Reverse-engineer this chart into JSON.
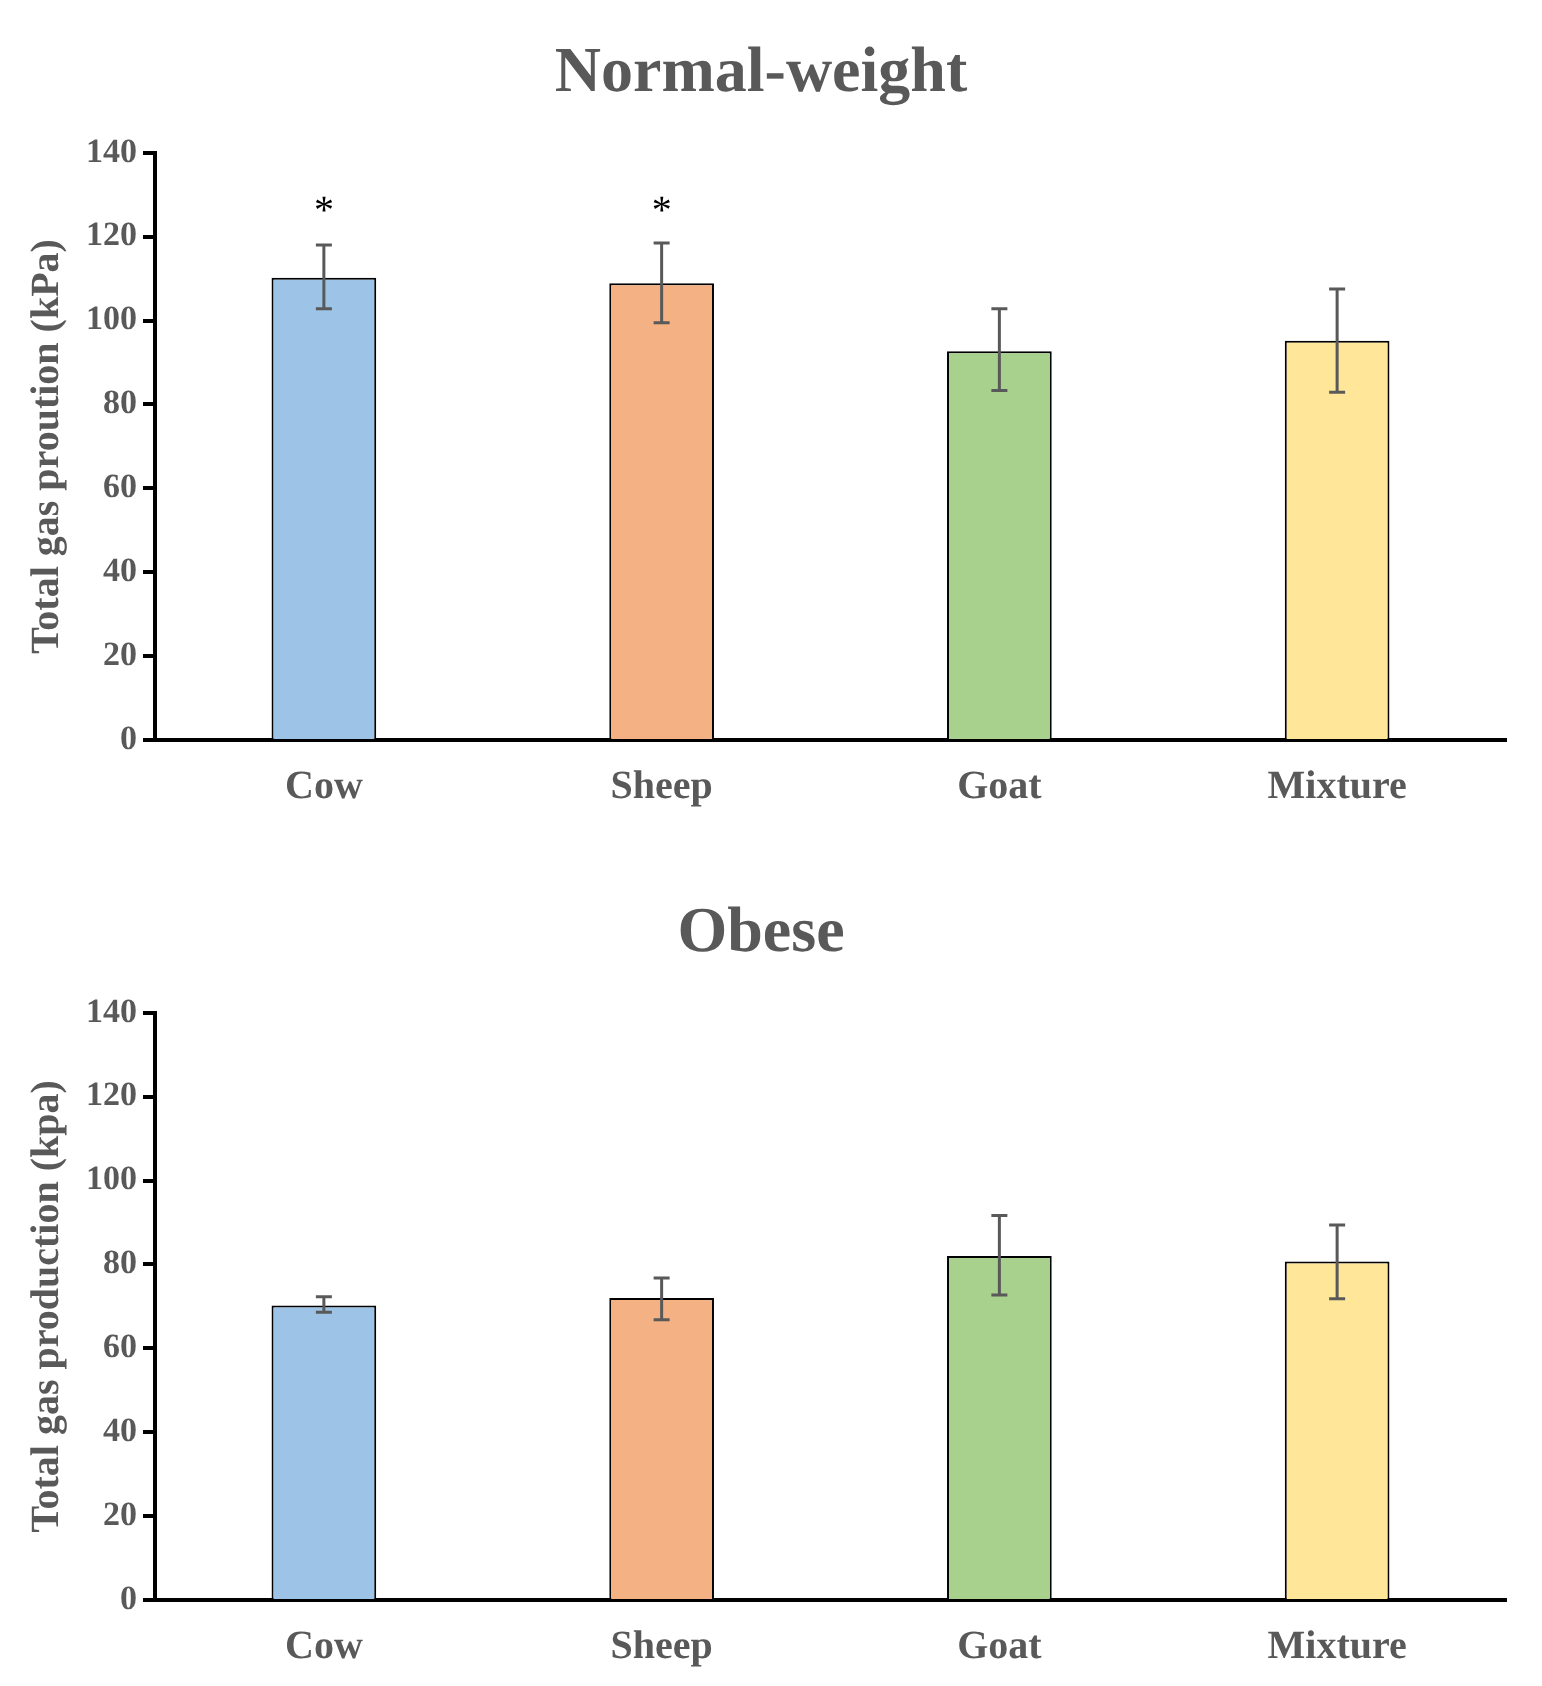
{
  "chart_data": [
    {
      "type": "bar",
      "title": "Normal-weight",
      "ylabel": "Total gas proution (kPa)",
      "categories": [
        "Cow",
        "Sheep",
        "Goat",
        "Mixture"
      ],
      "values": [
        110.2,
        108.9,
        92.7,
        95.2
      ],
      "colors": [
        "#9dc3e6",
        "#f4b183",
        "#a9d18e",
        "#ffe699"
      ],
      "errors": [
        [
          102.8,
          118
        ],
        [
          99.5,
          118.5
        ],
        [
          83.3,
          102.8
        ],
        [
          82.9,
          107.5
        ]
      ],
      "ylim": [
        0,
        140
      ],
      "yticks": [
        0,
        20,
        40,
        60,
        80,
        100,
        120,
        140
      ],
      "grid": false,
      "annotations": [
        "*",
        "*"
      ]
    },
    {
      "type": "bar",
      "title": "Obese",
      "ylabel": "Total gas production (kpa)",
      "categories": [
        "Cow",
        "Sheep",
        "Goat",
        "Mixture"
      ],
      "values": [
        70.2,
        72,
        82,
        80.7
      ],
      "colors": [
        "#9dc3e6",
        "#f4b183",
        "#a9d18e",
        "#ffe699"
      ],
      "errors": [
        [
          68.6,
          72.3
        ],
        [
          66.8,
          76.8
        ],
        [
          72.7,
          91.7
        ],
        [
          71.8,
          89.4
        ]
      ],
      "ylim": [
        0,
        140
      ],
      "yticks": [
        0,
        20,
        40,
        60,
        80,
        100,
        120,
        140
      ],
      "grid": false
    }
  ]
}
